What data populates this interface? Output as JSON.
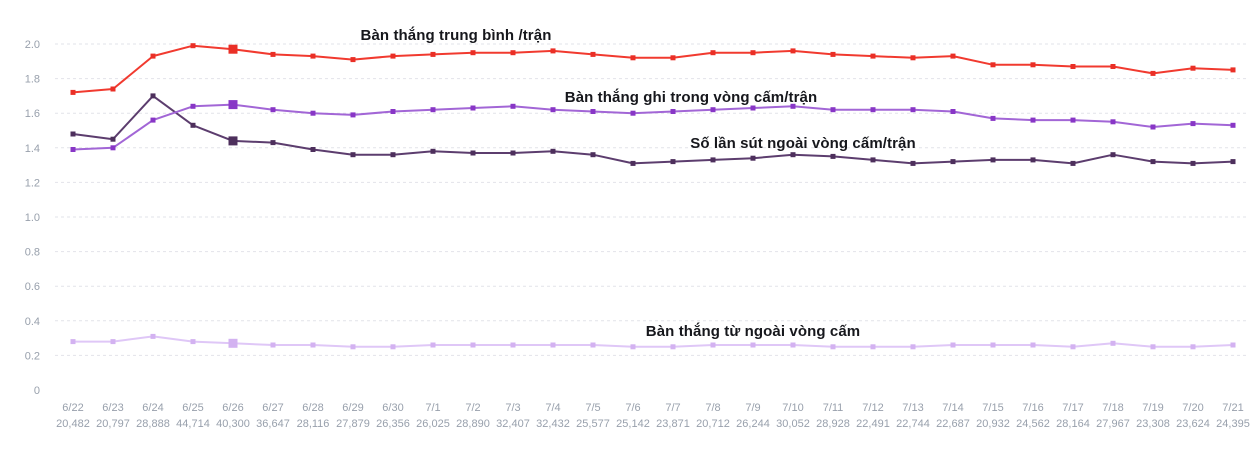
{
  "chart_data": {
    "type": "line",
    "title": "",
    "legend": "inline-labels-on-plot",
    "grid": "horizontal-dashed",
    "ylim": [
      0,
      2.0
    ],
    "y_ticks": [
      "2.0",
      "1.8",
      "1.6",
      "1.4",
      "1.2",
      "1.0",
      "0.8",
      "0.6",
      "0.4",
      "0.2",
      "0"
    ],
    "highlight_category": "6/26",
    "categories": [
      "6/22",
      "6/23",
      "6/24",
      "6/25",
      "6/26",
      "6/27",
      "6/28",
      "6/29",
      "6/30",
      "7/1",
      "7/2",
      "7/3",
      "7/4",
      "7/5",
      "7/6",
      "7/7",
      "7/8",
      "7/9",
      "7/10",
      "7/11",
      "7/12",
      "7/13",
      "7/14",
      "7/15",
      "7/16",
      "7/17",
      "7/18",
      "7/19",
      "7/20",
      "7/21"
    ],
    "category_counts": [
      "20,482",
      "20,797",
      "28,888",
      "44,714",
      "40,300",
      "36,647",
      "28,116",
      "27,879",
      "26,356",
      "26,025",
      "28,890",
      "32,407",
      "32,432",
      "25,577",
      "25,142",
      "23,871",
      "20,712",
      "26,244",
      "30,052",
      "28,928",
      "22,491",
      "22,744",
      "22,687",
      "20,932",
      "24,562",
      "28,164",
      "27,967",
      "23,308",
      "23,624",
      "24,395"
    ],
    "series": [
      {
        "name": "Bàn thắng trung bình /trận",
        "color": "#f13a2f",
        "marker_color": "#ea2f26",
        "values": [
          1.72,
          1.74,
          1.93,
          1.99,
          1.97,
          1.94,
          1.93,
          1.91,
          1.93,
          1.94,
          1.95,
          1.95,
          1.96,
          1.94,
          1.92,
          1.92,
          1.95,
          1.95,
          1.96,
          1.94,
          1.93,
          1.92,
          1.93,
          1.88,
          1.88,
          1.87,
          1.87,
          1.83,
          1.86,
          1.85
        ]
      },
      {
        "name": "Bàn thắng ghi trong vòng cấm/trận",
        "color": "#a266d6",
        "marker_color": "#8836c6",
        "values": [
          1.39,
          1.4,
          1.56,
          1.64,
          1.65,
          1.62,
          1.6,
          1.59,
          1.61,
          1.62,
          1.63,
          1.64,
          1.62,
          1.61,
          1.6,
          1.61,
          1.62,
          1.63,
          1.64,
          1.62,
          1.62,
          1.62,
          1.61,
          1.57,
          1.56,
          1.56,
          1.55,
          1.52,
          1.54,
          1.53
        ]
      },
      {
        "name": "Số lần sút ngoài vòng cấm/trận",
        "color": "#5c3d6e",
        "marker_color": "#4d2f5c",
        "values": [
          1.48,
          1.45,
          1.7,
          1.53,
          1.44,
          1.43,
          1.39,
          1.36,
          1.36,
          1.38,
          1.37,
          1.37,
          1.38,
          1.36,
          1.31,
          1.32,
          1.33,
          1.34,
          1.36,
          1.35,
          1.33,
          1.31,
          1.32,
          1.33,
          1.33,
          1.31,
          1.36,
          1.32,
          1.31,
          1.32
        ]
      },
      {
        "name": "Bàn thắng từ ngoài vòng cấm",
        "color": "#dfc7f7",
        "marker_color": "#d3b2f1",
        "values": [
          0.28,
          0.28,
          0.31,
          0.28,
          0.27,
          0.26,
          0.26,
          0.25,
          0.25,
          0.26,
          0.26,
          0.26,
          0.26,
          0.26,
          0.25,
          0.25,
          0.26,
          0.26,
          0.26,
          0.25,
          0.25,
          0.25,
          0.26,
          0.26,
          0.26,
          0.25,
          0.27,
          0.25,
          0.25,
          0.26
        ]
      }
    ],
    "axis_text_color": "#98a0ac",
    "gridline_color": "#e2e3e9"
  }
}
